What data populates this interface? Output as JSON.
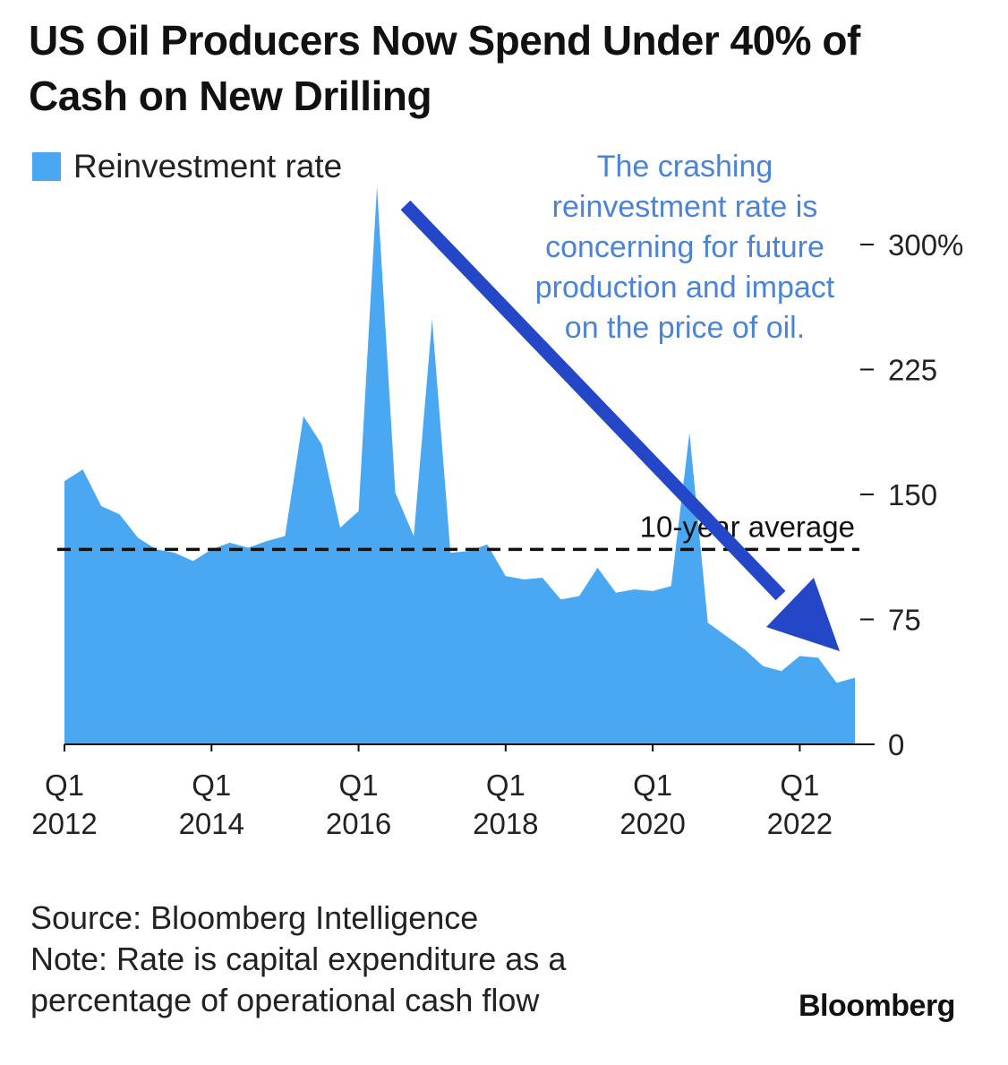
{
  "chart_data": {
    "type": "area",
    "title": "US Oil Producers Now Spend Under 40% of Cash on New Drilling",
    "xlabel": "",
    "ylabel": "",
    "series": [
      {
        "name": "Reinvestment rate",
        "color": "#4aa8f2",
        "points": [
          {
            "x": 2012.0,
            "y": 158
          },
          {
            "x": 2012.25,
            "y": 165
          },
          {
            "x": 2012.5,
            "y": 143
          },
          {
            "x": 2012.75,
            "y": 138
          },
          {
            "x": 2013.0,
            "y": 124
          },
          {
            "x": 2013.25,
            "y": 117
          },
          {
            "x": 2013.5,
            "y": 115
          },
          {
            "x": 2013.75,
            "y": 110
          },
          {
            "x": 2014.0,
            "y": 117
          },
          {
            "x": 2014.25,
            "y": 121
          },
          {
            "x": 2014.5,
            "y": 118
          },
          {
            "x": 2014.75,
            "y": 122
          },
          {
            "x": 2015.0,
            "y": 125
          },
          {
            "x": 2015.25,
            "y": 197
          },
          {
            "x": 2015.5,
            "y": 180
          },
          {
            "x": 2015.75,
            "y": 130
          },
          {
            "x": 2016.0,
            "y": 140
          },
          {
            "x": 2016.25,
            "y": 335
          },
          {
            "x": 2016.5,
            "y": 151
          },
          {
            "x": 2016.75,
            "y": 125
          },
          {
            "x": 2017.0,
            "y": 255
          },
          {
            "x": 2017.25,
            "y": 115
          },
          {
            "x": 2017.5,
            "y": 116
          },
          {
            "x": 2017.75,
            "y": 120
          },
          {
            "x": 2018.0,
            "y": 101
          },
          {
            "x": 2018.25,
            "y": 99
          },
          {
            "x": 2018.5,
            "y": 100
          },
          {
            "x": 2018.75,
            "y": 87
          },
          {
            "x": 2019.0,
            "y": 89
          },
          {
            "x": 2019.25,
            "y": 106
          },
          {
            "x": 2019.5,
            "y": 91
          },
          {
            "x": 2019.75,
            "y": 93
          },
          {
            "x": 2020.0,
            "y": 92
          },
          {
            "x": 2020.25,
            "y": 95
          },
          {
            "x": 2020.5,
            "y": 187
          },
          {
            "x": 2020.75,
            "y": 73
          },
          {
            "x": 2021.0,
            "y": 65
          },
          {
            "x": 2021.25,
            "y": 57
          },
          {
            "x": 2021.5,
            "y": 47
          },
          {
            "x": 2021.75,
            "y": 44
          },
          {
            "x": 2022.0,
            "y": 53
          },
          {
            "x": 2022.25,
            "y": 52
          },
          {
            "x": 2022.5,
            "y": 37
          },
          {
            "x": 2022.75,
            "y": 40
          }
        ]
      }
    ],
    "reference_lines": [
      {
        "label": "10-year average",
        "y": 117,
        "style": "dashed",
        "color": "#111111"
      }
    ],
    "x_ticks": [
      {
        "value": 2012,
        "line1": "Q1",
        "line2": "2012"
      },
      {
        "value": 2014,
        "line1": "Q1",
        "line2": "2014"
      },
      {
        "value": 2016,
        "line1": "Q1",
        "line2": "2016"
      },
      {
        "value": 2018,
        "line1": "Q1",
        "line2": "2018"
      },
      {
        "value": 2020,
        "line1": "Q1",
        "line2": "2020"
      },
      {
        "value": 2022,
        "line1": "Q1",
        "line2": "2022"
      }
    ],
    "y_ticks": [
      {
        "value": 0,
        "label": "0"
      },
      {
        "value": 75,
        "label": "75"
      },
      {
        "value": 150,
        "label": "150"
      },
      {
        "value": 225,
        "label": "225"
      },
      {
        "value": 300,
        "label": "300%"
      }
    ],
    "xlim": [
      2012,
      2022.75
    ],
    "ylim": [
      0,
      335
    ],
    "grid": false,
    "legend": {
      "position": "top-left",
      "label": "Reinvestment rate"
    },
    "annotation": {
      "text": "The crashing\nreinvestment rate is\nconcerning for future\nproduction and impact\non the price of oil.",
      "color": "#4b83d6",
      "arrow_color": "#2447c8"
    }
  },
  "footnote": {
    "source": "Source: Bloomberg Intelligence",
    "note_line1": "Note: Rate is capital expenditure as a",
    "note_line2": "percentage of operational cash flow"
  },
  "brand": "Bloomberg"
}
